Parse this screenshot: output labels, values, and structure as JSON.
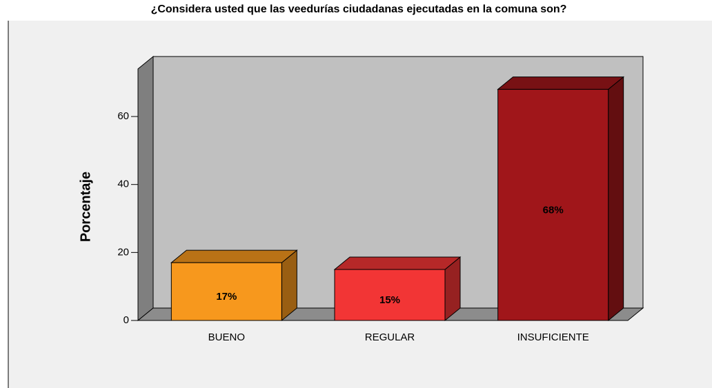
{
  "chart_data": {
    "type": "bar3d",
    "title": "¿Considera usted que las veedurías ciudadanas ejecutadas en la comuna son?",
    "y_label": "Porcentaje",
    "categories": [
      "BUENO",
      "REGULAR",
      "INSUFICIENTE"
    ],
    "values": [
      17,
      15,
      68
    ],
    "value_labels": [
      "17%",
      "15%",
      "68%"
    ],
    "colors": [
      "#f7981d",
      "#f23535",
      "#a0161a"
    ],
    "ylim": [
      0,
      74
    ],
    "yticks": [
      0,
      20,
      40,
      60
    ]
  }
}
